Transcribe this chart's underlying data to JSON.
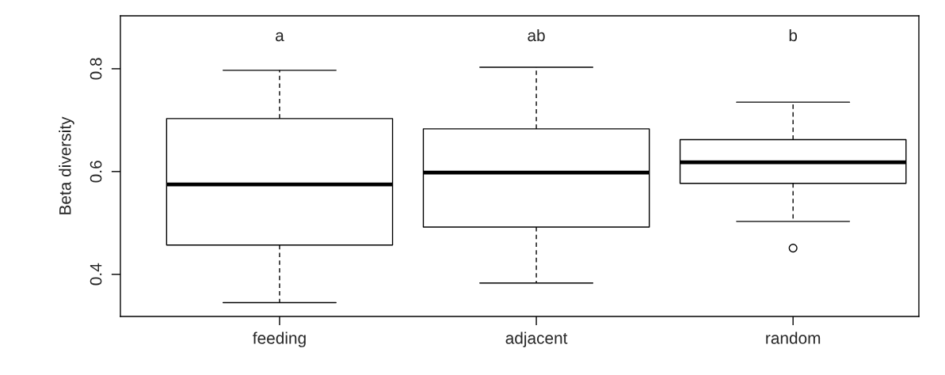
{
  "chart_data": {
    "type": "box",
    "ylabel": "Beta diversity",
    "categories": [
      "feeding",
      "adjacent",
      "random"
    ],
    "boxes": [
      {
        "low": 0.345,
        "q1": 0.457,
        "median": 0.575,
        "q3": 0.703,
        "high": 0.797
      },
      {
        "low": 0.383,
        "q1": 0.492,
        "median": 0.598,
        "q3": 0.683,
        "high": 0.803
      },
      {
        "low": 0.503,
        "q1": 0.577,
        "median": 0.618,
        "q3": 0.662,
        "high": 0.735,
        "outliers": [
          0.451
        ]
      }
    ],
    "ylim": [
      0.318,
      0.903
    ],
    "yticks": [
      0.4,
      0.6,
      0.8
    ],
    "grid": false,
    "annotations": [
      "a",
      "ab",
      "b"
    ]
  }
}
